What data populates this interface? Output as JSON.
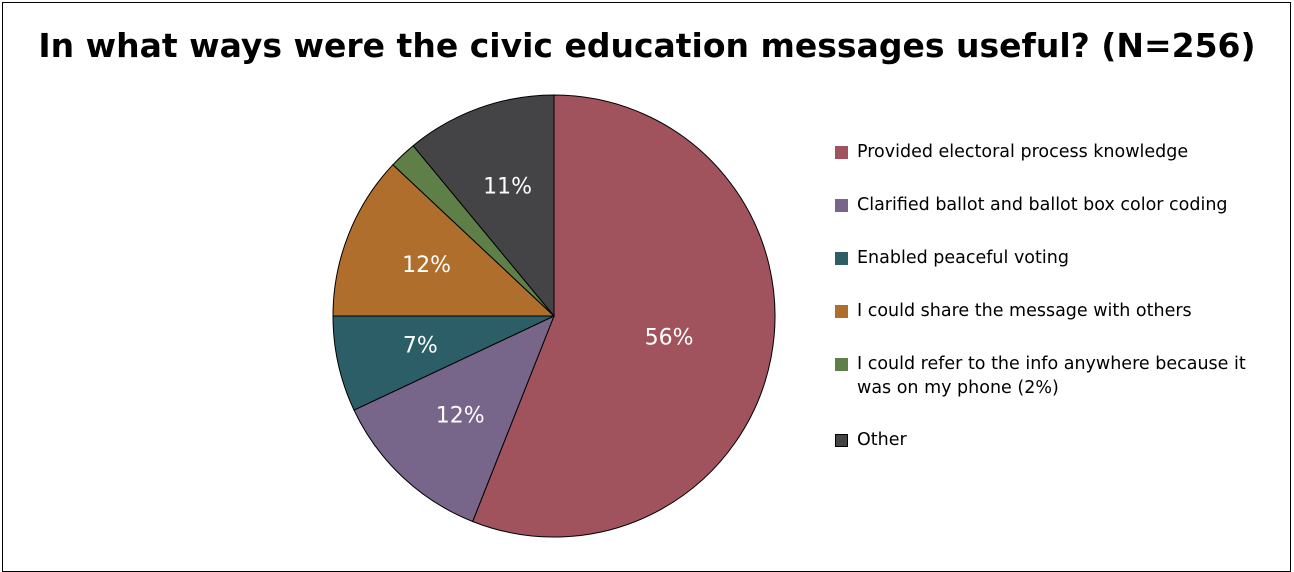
{
  "chart_data": {
    "type": "pie",
    "title": "In what ways were the civic education messages useful? (N=256)",
    "legend_position": "right",
    "slices": [
      {
        "label": "Provided electoral process knowledge",
        "value": 56,
        "value_label": "56%",
        "color": "#a0535d"
      },
      {
        "label": "Clarified ballot and ballot box color coding",
        "value": 12,
        "value_label": "12%",
        "color": "#77658a"
      },
      {
        "label": "Enabled peaceful voting",
        "value": 7,
        "value_label": "7%",
        "color": "#2c5e68"
      },
      {
        "label": "I could share the message with others",
        "value": 12,
        "value_label": "12%",
        "color": "#b06e2c"
      },
      {
        "label": "I could refer to the info anywhere because it was on my phone (2%)",
        "value": 2,
        "value_label": "",
        "color": "#5e7f48"
      },
      {
        "label": "Other",
        "value": 11,
        "value_label": "11%",
        "color": "#444446"
      }
    ]
  }
}
